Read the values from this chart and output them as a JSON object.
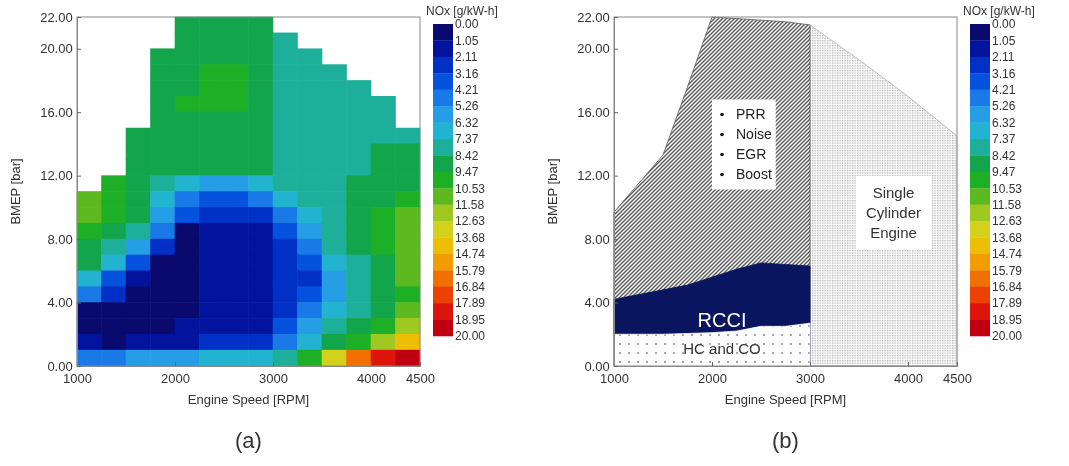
{
  "chart_data": [
    {
      "type": "scatter",
      "marker": "square",
      "title": "(a)",
      "xlabel": "Engine Speed [RPM]",
      "ylabel": "BMEP [bar]",
      "clabel": "NOx [g/kW-h]",
      "xlim": [
        1000,
        4500
      ],
      "xticks": [
        1000,
        2000,
        3000,
        4000,
        4500
      ],
      "ylim": [
        0,
        22
      ],
      "yticks": [
        {
          "value": 0,
          "label": "0.00"
        },
        {
          "value": 4,
          "label": "4.00"
        },
        {
          "value": 8,
          "label": "8.00"
        },
        {
          "value": 12,
          "label": "12.00"
        },
        {
          "value": 16,
          "label": "16.00"
        },
        {
          "value": 20,
          "label": "20.00"
        },
        {
          "value": 22,
          "label": "22.00"
        }
      ],
      "clim": [
        0,
        20
      ],
      "cticks": [
        {
          "value": 0,
          "label": "0.00"
        },
        {
          "value": 1.05,
          "label": "1.05"
        },
        {
          "value": 2.11,
          "label": "2.11"
        },
        {
          "value": 3.16,
          "label": "3.16"
        },
        {
          "value": 4.21,
          "label": "4.21"
        },
        {
          "value": 5.26,
          "label": "5.26"
        },
        {
          "value": 6.32,
          "label": "6.32"
        },
        {
          "value": 7.37,
          "label": "7.37"
        },
        {
          "value": 8.42,
          "label": "8.42"
        },
        {
          "value": 9.47,
          "label": "9.47"
        },
        {
          "value": 10.53,
          "label": "10.53"
        },
        {
          "value": 11.58,
          "label": "11.58"
        },
        {
          "value": 12.63,
          "label": "12.63"
        },
        {
          "value": 13.68,
          "label": "13.68"
        },
        {
          "value": 14.74,
          "label": "14.74"
        },
        {
          "value": 15.79,
          "label": "15.79"
        },
        {
          "value": 16.84,
          "label": "16.84"
        },
        {
          "value": 17.89,
          "label": "17.89"
        },
        {
          "value": 18.95,
          "label": "18.95"
        },
        {
          "value": 20,
          "label": "20.00"
        }
      ],
      "x": [
        2125,
        2375,
        2625,
        2875,
        2125,
        2375,
        2625,
        2875,
        3125,
        1875,
        2125,
        2375,
        2625,
        2875,
        3125,
        3375,
        1875,
        2125,
        2375,
        2625,
        2875,
        3125,
        3375,
        3625,
        1875,
        2125,
        2375,
        2625,
        2875,
        3125,
        3375,
        3625,
        3875,
        1875,
        2125,
        2375,
        2625,
        2875,
        3125,
        3375,
        3625,
        3875,
        4125,
        1875,
        2125,
        2375,
        2625,
        2875,
        3125,
        3375,
        3625,
        3875,
        4125,
        1625,
        1875,
        2125,
        2375,
        2625,
        2875,
        3125,
        3375,
        3625,
        3875,
        4125,
        4375,
        1625,
        1875,
        2125,
        2375,
        2625,
        2875,
        3125,
        3375,
        3625,
        3875,
        4125,
        4375,
        1625,
        1875,
        2125,
        2375,
        2625,
        2875,
        3125,
        3375,
        3625,
        3875,
        4125,
        4375,
        1375,
        1625,
        1875,
        2125,
        2375,
        2625,
        2875,
        3125,
        3375,
        3625,
        3875,
        4125,
        4375,
        1125,
        1375,
        1625,
        1875,
        2125,
        2375,
        2625,
        2875,
        3125,
        3375,
        3625,
        3875,
        4125,
        4375,
        1125,
        1375,
        1625,
        1875,
        2125,
        2375,
        2625,
        2875,
        3125,
        3375,
        3625,
        3875,
        4125,
        4375,
        1125,
        1375,
        1625,
        1875,
        2125,
        2375,
        2625,
        2875,
        3125,
        3375,
        3625,
        3875,
        4125,
        4375,
        1125,
        1375,
        1625,
        1875,
        2125,
        2375,
        2625,
        2875,
        3125,
        3375,
        3625,
        3875,
        4125,
        4375,
        1125,
        1375,
        1625,
        1875,
        2125,
        2375,
        2625,
        2875,
        3125,
        3375,
        3625,
        3875,
        4125,
        4375,
        1125,
        1375,
        1625,
        1875,
        2125,
        2375,
        2625,
        2875,
        3125,
        3375,
        3625,
        3875,
        4125,
        4375,
        1125,
        1375,
        1625,
        1875,
        2125,
        2375,
        2625,
        2875,
        3125,
        3375,
        3625,
        3875,
        4125,
        4375,
        1125,
        1375,
        1625,
        1875,
        2125,
        2375,
        2625,
        2875,
        3125,
        3375,
        3625,
        3875,
        4125,
        4375,
        1125,
        1375,
        1625,
        1875,
        2125,
        2375,
        2625,
        2875,
        3125,
        3375,
        3625,
        3875,
        4125,
        4375,
        1125,
        1375,
        1625,
        1875,
        2125,
        2375,
        2625,
        2875,
        3125,
        3375,
        3625,
        3875,
        4125,
        4375,
        1125,
        1375,
        1625,
        1875,
        2125,
        2375,
        2625,
        2875,
        3125,
        3375,
        3625,
        3875,
        4125,
        4375
      ],
      "values": [
        21.5,
        21.5,
        21.5,
        21.5,
        20.5,
        20.5,
        20.5,
        20.5,
        20.5,
        19.5,
        19.5,
        19.5,
        19.5,
        19.5,
        19.5,
        19.5,
        18.5,
        18.5,
        18.5,
        18.5,
        18.5,
        18.5,
        18.5,
        18.5,
        17.5,
        17.5,
        17.5,
        17.5,
        17.5,
        17.5,
        17.5,
        17.5,
        17.5,
        16.5,
        16.5,
        16.5,
        16.5,
        16.5,
        16.5,
        16.5,
        16.5,
        16.5,
        16.5,
        15.5,
        15.5,
        15.5,
        15.5,
        15.5,
        15.5,
        15.5,
        15.5,
        15.5,
        15.5,
        14.5,
        14.5,
        14.5,
        14.5,
        14.5,
        14.5,
        14.5,
        14.5,
        14.5,
        14.5,
        14.5,
        14.5,
        13.5,
        13.5,
        13.5,
        13.5,
        13.5,
        13.5,
        13.5,
        13.5,
        13.5,
        13.5,
        13.5,
        13.5,
        12.5,
        12.5,
        12.5,
        12.5,
        12.5,
        12.5,
        12.5,
        12.5,
        12.5,
        12.5,
        12.5,
        12.5,
        11.5,
        11.5,
        11.5,
        11.5,
        11.5,
        11.5,
        11.5,
        11.5,
        11.5,
        11.5,
        11.5,
        11.5,
        11.5,
        10.5,
        10.5,
        10.5,
        10.5,
        10.5,
        10.5,
        10.5,
        10.5,
        10.5,
        10.5,
        10.5,
        10.5,
        10.5,
        10.5,
        9.5,
        9.5,
        9.5,
        9.5,
        9.5,
        9.5,
        9.5,
        9.5,
        9.5,
        9.5,
        9.5,
        9.5,
        9.5,
        9.5,
        8.5,
        8.5,
        8.5,
        8.5,
        8.5,
        8.5,
        8.5,
        8.5,
        8.5,
        8.5,
        8.5,
        8.5,
        8.5,
        8.5,
        7.5,
        7.5,
        7.5,
        7.5,
        7.5,
        7.5,
        7.5,
        7.5,
        7.5,
        7.5,
        7.5,
        7.5,
        7.5,
        7.5,
        6.5,
        6.5,
        6.5,
        6.5,
        6.5,
        6.5,
        6.5,
        6.5,
        6.5,
        6.5,
        6.5,
        6.5,
        6.5,
        6.5,
        5.5,
        5.5,
        5.5,
        5.5,
        5.5,
        5.5,
        5.5,
        5.5,
        5.5,
        5.5,
        5.5,
        5.5,
        5.5,
        5.5,
        4.5,
        4.5,
        4.5,
        4.5,
        4.5,
        4.5,
        4.5,
        4.5,
        4.5,
        4.5,
        4.5,
        4.5,
        4.5,
        4.5,
        3.5,
        3.5,
        3.5,
        3.5,
        3.5,
        3.5,
        3.5,
        3.5,
        3.5,
        3.5,
        3.5,
        3.5,
        3.5,
        3.5,
        2.5,
        2.5,
        2.5,
        2.5,
        2.5,
        2.5,
        2.5,
        2.5,
        2.5,
        2.5,
        2.5,
        2.5,
        2.5,
        2.5,
        1.5,
        1.5,
        1.5,
        1.5,
        1.5,
        1.5,
        1.5,
        1.5,
        1.5,
        1.5,
        1.5,
        1.5,
        1.5,
        1.5,
        0.5,
        0.5,
        0.5,
        0.5,
        0.5,
        0.5,
        0.5,
        0.5,
        0.5,
        0.5,
        0.5,
        0.5,
        0.5,
        0.5
      ],
      "cvalues": [
        9.0,
        9.0,
        9.0,
        9.0,
        9.0,
        9.0,
        9.0,
        9.0,
        7.9,
        9.0,
        9.0,
        9.0,
        9.0,
        9.0,
        7.9,
        7.9,
        9.0,
        9.0,
        10.0,
        10.0,
        9.0,
        7.9,
        7.9,
        7.9,
        9.0,
        9.0,
        10.0,
        10.0,
        9.0,
        7.9,
        7.9,
        7.9,
        7.9,
        9.0,
        10.0,
        10.0,
        10.0,
        9.0,
        7.9,
        7.9,
        7.9,
        7.9,
        7.9,
        9.0,
        9.0,
        9.0,
        9.0,
        9.0,
        7.9,
        7.9,
        7.9,
        7.9,
        7.9,
        9.0,
        9.0,
        9.0,
        9.0,
        9.0,
        9.0,
        7.9,
        7.9,
        7.9,
        7.9,
        7.9,
        7.9,
        9.0,
        9.0,
        9.0,
        9.0,
        9.0,
        9.0,
        7.9,
        7.9,
        7.9,
        7.9,
        9.0,
        9.0,
        9.0,
        9.0,
        9.0,
        9.0,
        9.0,
        9.0,
        7.9,
        7.9,
        7.9,
        7.9,
        9.0,
        9.0,
        10.0,
        9.0,
        7.9,
        6.8,
        5.8,
        5.8,
        6.8,
        7.9,
        7.9,
        7.9,
        9.0,
        9.0,
        9.0,
        11.0,
        10.0,
        9.0,
        6.8,
        4.7,
        3.7,
        3.7,
        4.7,
        6.8,
        7.9,
        7.9,
        9.0,
        9.0,
        10.0,
        11.0,
        10.0,
        9.0,
        5.8,
        3.7,
        2.6,
        2.6,
        2.6,
        4.7,
        6.8,
        7.9,
        9.0,
        10.0,
        11.0,
        10.0,
        9.0,
        7.9,
        4.7,
        0.5,
        1.6,
        1.6,
        1.6,
        3.7,
        5.8,
        7.9,
        9.0,
        10.0,
        11.0,
        9.0,
        7.9,
        5.8,
        2.6,
        0.5,
        1.6,
        1.6,
        1.6,
        2.6,
        4.7,
        7.9,
        9.0,
        10.0,
        11.0,
        9.0,
        6.8,
        3.7,
        0.5,
        0.5,
        1.6,
        1.6,
        1.6,
        2.6,
        3.7,
        6.8,
        7.9,
        9.0,
        11.0,
        6.8,
        3.7,
        1.6,
        0.5,
        0.5,
        1.6,
        1.6,
        1.6,
        2.6,
        2.6,
        5.8,
        7.9,
        9.0,
        11.0,
        4.7,
        2.6,
        0.5,
        0.5,
        0.5,
        1.6,
        1.6,
        1.6,
        2.6,
        3.7,
        5.8,
        7.9,
        9.0,
        10.0,
        0.5,
        0.5,
        0.5,
        0.5,
        0.5,
        1.6,
        1.6,
        1.6,
        2.6,
        4.7,
        6.8,
        7.9,
        9.0,
        11.0,
        0.5,
        0.5,
        0.5,
        0.5,
        1.6,
        1.6,
        1.6,
        1.6,
        3.7,
        5.8,
        7.9,
        9.0,
        10.0,
        12.1,
        1.6,
        0.5,
        1.6,
        1.6,
        1.6,
        2.6,
        2.6,
        2.6,
        4.7,
        6.8,
        9.0,
        10.0,
        12.1,
        14.2,
        4.7,
        4.7,
        5.8,
        5.8,
        5.8,
        6.8,
        6.8,
        6.8,
        7.9,
        10.0,
        13.2,
        16.3,
        18.4,
        19.5
      ]
    },
    {
      "type": "area",
      "title": "(b)",
      "xlabel": "Engine Speed [RPM]",
      "ylabel": "BMEP [bar]",
      "clabel": "NOx [g/kW-h]",
      "xlim": [
        1000,
        4500
      ],
      "xticks": [
        1000,
        2000,
        3000,
        4000,
        4500
      ],
      "ylim": [
        0,
        22
      ],
      "yticks": [
        {
          "value": 0,
          "label": "0.00"
        },
        {
          "value": 4,
          "label": "4.00"
        },
        {
          "value": 8,
          "label": "8.00"
        },
        {
          "value": 12,
          "label": "12.00"
        },
        {
          "value": 16,
          "label": "16.00"
        },
        {
          "value": 20,
          "label": "20.00"
        },
        {
          "value": 22,
          "label": "22.00"
        }
      ],
      "clim": [
        0,
        20
      ],
      "cticks": [
        {
          "value": 0,
          "label": "0.00"
        },
        {
          "value": 1.05,
          "label": "1.05"
        },
        {
          "value": 2.11,
          "label": "2.11"
        },
        {
          "value": 3.16,
          "label": "3.16"
        },
        {
          "value": 4.21,
          "label": "4.21"
        },
        {
          "value": 5.26,
          "label": "5.26"
        },
        {
          "value": 6.32,
          "label": "6.32"
        },
        {
          "value": 7.37,
          "label": "7.37"
        },
        {
          "value": 8.42,
          "label": "8.42"
        },
        {
          "value": 9.47,
          "label": "9.47"
        },
        {
          "value": 10.53,
          "label": "10.53"
        },
        {
          "value": 11.58,
          "label": "11.58"
        },
        {
          "value": 12.63,
          "label": "12.63"
        },
        {
          "value": 13.68,
          "label": "13.68"
        },
        {
          "value": 14.74,
          "label": "14.74"
        },
        {
          "value": 15.79,
          "label": "15.79"
        },
        {
          "value": 16.84,
          "label": "16.84"
        },
        {
          "value": 17.89,
          "label": "17.89"
        },
        {
          "value": 18.95,
          "label": "18.95"
        },
        {
          "value": 20,
          "label": "20.00"
        }
      ],
      "x": [
        1000,
        1250,
        1500,
        1750,
        2000,
        2250,
        2500,
        2750,
        3000
      ],
      "series": [
        {
          "name": "HC and CO",
          "color": "#ffffff",
          "values": [
            2.0,
            2.0,
            2.0,
            2.05,
            2.1,
            2.2,
            2.5,
            2.5,
            2.7
          ]
        },
        {
          "name": "RCCI",
          "color": "#0a1560",
          "values": [
            4.2,
            4.5,
            4.8,
            5.1,
            5.6,
            6.1,
            6.5,
            6.4,
            6.3
          ]
        },
        {
          "color": "#555555",
          "values": [
            9.7,
            11.5,
            13.3,
            17.6,
            22.0,
            21.9,
            21.8,
            21.7,
            21.5
          ]
        },
        {
          "name": "Single Cylinder Engine",
          "color": "#b0b0b0",
          "x": [
            3000,
            3500,
            4000,
            4500
          ],
          "values": [
            21.5,
            19.3,
            17.0,
            14.5
          ]
        }
      ],
      "annotations": [
        "PRR",
        "Noise",
        "EGR",
        "Boost"
      ]
    }
  ]
}
